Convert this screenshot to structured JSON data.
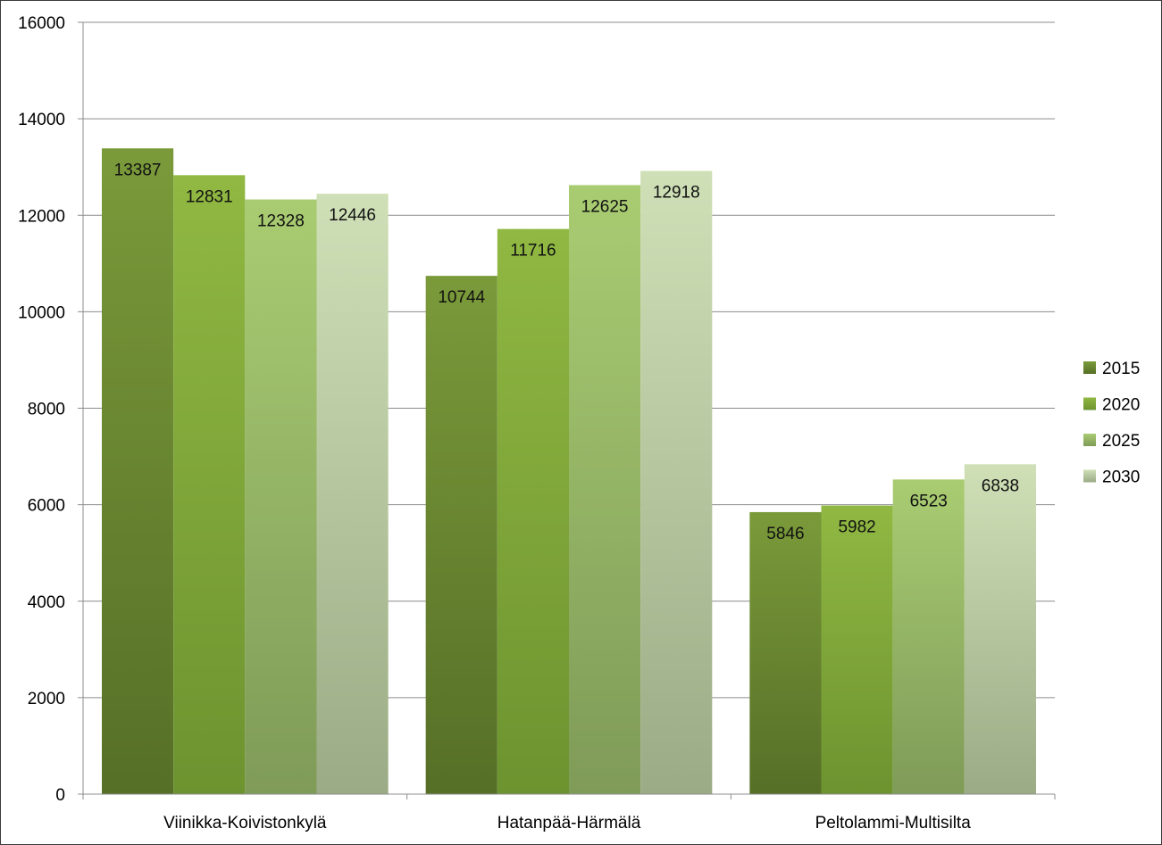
{
  "chart_data": {
    "type": "bar",
    "title": "",
    "xlabel": "",
    "ylabel": "",
    "categories": [
      "Viinikka-Koivistonkylä",
      "Hatanpää-Härmälä",
      "Peltolammi-Multisilta"
    ],
    "series": [
      {
        "name": "2015",
        "values": [
          13387,
          10744,
          5846
        ],
        "color_top": "#7a9a3a",
        "color_bottom": "#566f27"
      },
      {
        "name": "2020",
        "values": [
          12831,
          11716,
          5982
        ],
        "color_top": "#90b842",
        "color_bottom": "#6d9330"
      },
      {
        "name": "2025",
        "values": [
          12328,
          12625,
          6523
        ],
        "color_top": "#a9cc72",
        "color_bottom": "#7f9b58"
      },
      {
        "name": "2030",
        "values": [
          12446,
          12918,
          6838
        ],
        "color_top": "#cfdfb6",
        "color_bottom": "#9bab85"
      }
    ],
    "ylim": [
      0,
      16000
    ],
    "yticks": [
      0,
      2000,
      4000,
      6000,
      8000,
      10000,
      12000,
      14000,
      16000
    ],
    "grid": true,
    "legend_position": "right",
    "data_labels": true
  }
}
